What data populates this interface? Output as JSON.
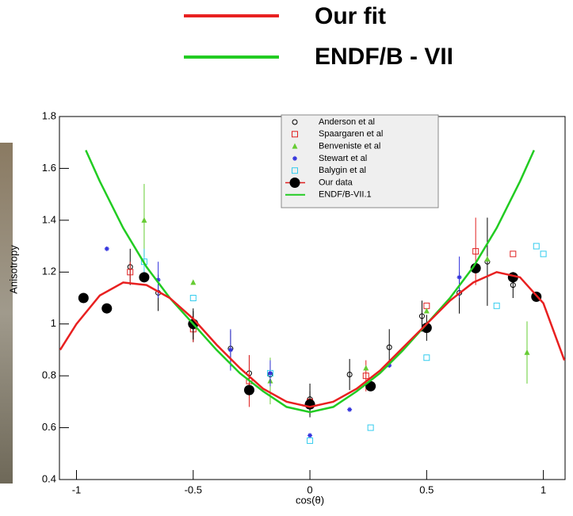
{
  "chart_data": {
    "type": "scatter",
    "xlabel": "cos(θ)",
    "ylabel": "Anisotropy",
    "xlim": [
      -1.073,
      1.093
    ],
    "ylim": [
      0.4,
      1.8
    ],
    "xticks": [
      -1,
      -0.5,
      0,
      0.5,
      1
    ],
    "yticks": [
      0.4,
      0.6,
      0.8,
      1,
      1.2,
      1.4,
      1.6,
      1.8
    ],
    "top_legend_extra": {
      "label": "ENDF/B - VII",
      "color": "#22cc22"
    },
    "series": [
      {
        "name": "Anderson et al",
        "type": "points",
        "marker": "open-circle",
        "color": "#000000",
        "x": [
          -0.77,
          -0.65,
          -0.5,
          -0.34,
          -0.26,
          -0.17,
          0,
          0.17,
          0.34,
          0.48,
          0.64,
          0.76,
          0.87
        ],
        "values": [
          1.22,
          1.12,
          0.99,
          0.905,
          0.81,
          0.805,
          0.71,
          0.805,
          0.91,
          1.03,
          1.12,
          1.24,
          1.15
        ],
        "errors": [
          0.07,
          0.07,
          0.06,
          0.07,
          0.07,
          0.05,
          0.06,
          0.06,
          0.07,
          0.06,
          0.08,
          0.17,
          0.05
        ]
      },
      {
        "name": "Spaargaren et al",
        "type": "points",
        "marker": "open-square",
        "color": "#e02020",
        "x": [
          -0.77,
          -0.5,
          -0.26,
          0,
          0.24,
          0.5,
          0.71,
          0.87
        ],
        "values": [
          1.2,
          0.98,
          0.78,
          0.7,
          0.8,
          1.07,
          1.28,
          1.27
        ],
        "errors": [
          0.04,
          0.05,
          0.1,
          null,
          0.06,
          null,
          0.13,
          null
        ]
      },
      {
        "name": "Benveniste et al",
        "type": "points",
        "marker": "triangle",
        "color": "#66cc33",
        "x": [
          -0.71,
          -0.5,
          -0.17,
          0.24,
          0.5,
          0.76,
          0.93
        ],
        "values": [
          1.4,
          1.16,
          0.78,
          0.83,
          1.05,
          1.25,
          0.89
        ],
        "errors": [
          0.14,
          null,
          0.09,
          null,
          null,
          null,
          0.12
        ]
      },
      {
        "name": "Stewart et al",
        "type": "points",
        "marker": "star",
        "color": "#3333dd",
        "x": [
          -0.87,
          -0.65,
          -0.34,
          -0.17,
          0,
          0.17,
          0.34,
          0.64
        ],
        "values": [
          1.29,
          1.17,
          0.9,
          0.81,
          0.57,
          0.67,
          0.84,
          1.18
        ],
        "errors": [
          null,
          0.07,
          0.08,
          0.05,
          null,
          null,
          null,
          0.08
        ]
      },
      {
        "name": "Balygin et al",
        "type": "points",
        "marker": "open-square",
        "color": "#33ccee",
        "x": [
          -0.71,
          -0.5,
          -0.17,
          0,
          0.26,
          0.5,
          0.8,
          0.97,
          1.0
        ],
        "values": [
          1.24,
          1.1,
          0.81,
          0.55,
          0.6,
          0.87,
          1.07,
          1.3,
          1.27
        ],
        "errors": [
          0.05,
          null,
          null,
          null,
          null,
          null,
          null,
          null,
          null
        ]
      },
      {
        "name": "Our data",
        "type": "points",
        "marker": "filled-circle",
        "color": "#000000",
        "x": [
          -0.97,
          -0.87,
          -0.71,
          -0.5,
          -0.26,
          0,
          0.26,
          0.5,
          0.71,
          0.87,
          0.97
        ],
        "values": [
          1.1,
          1.06,
          1.18,
          1.0,
          0.745,
          0.69,
          0.76,
          0.985,
          1.215,
          1.18,
          1.105
        ],
        "errors": [
          null,
          null,
          null,
          0.06,
          null,
          0.05,
          null,
          0.05,
          null,
          null,
          null
        ]
      },
      {
        "name": "ENDF/B-VII.1",
        "type": "line",
        "color": "#22cc22",
        "x": [
          -0.96,
          -0.9,
          -0.8,
          -0.7,
          -0.6,
          -0.5,
          -0.4,
          -0.3,
          -0.2,
          -0.1,
          0,
          0.1,
          0.2,
          0.3,
          0.4,
          0.5,
          0.6,
          0.7,
          0.8,
          0.9,
          0.96
        ],
        "values": [
          1.67,
          1.55,
          1.37,
          1.22,
          1.1,
          1.0,
          0.9,
          0.81,
          0.74,
          0.68,
          0.66,
          0.68,
          0.74,
          0.81,
          0.9,
          1.0,
          1.1,
          1.22,
          1.37,
          1.55,
          1.67
        ]
      },
      {
        "name": "Our fit",
        "type": "line",
        "color": "#e82020",
        "legend": "top",
        "x": [
          -1.07,
          -1.0,
          -0.9,
          -0.8,
          -0.7,
          -0.6,
          -0.5,
          -0.4,
          -0.3,
          -0.2,
          -0.1,
          0,
          0.1,
          0.2,
          0.3,
          0.4,
          0.5,
          0.6,
          0.7,
          0.8,
          0.9,
          1.0,
          1.09
        ],
        "values": [
          0.9,
          1.0,
          1.11,
          1.16,
          1.15,
          1.1,
          1.02,
          0.92,
          0.83,
          0.75,
          0.7,
          0.68,
          0.7,
          0.75,
          0.82,
          0.91,
          1.0,
          1.09,
          1.16,
          1.2,
          1.18,
          1.08,
          0.86
        ]
      }
    ]
  }
}
